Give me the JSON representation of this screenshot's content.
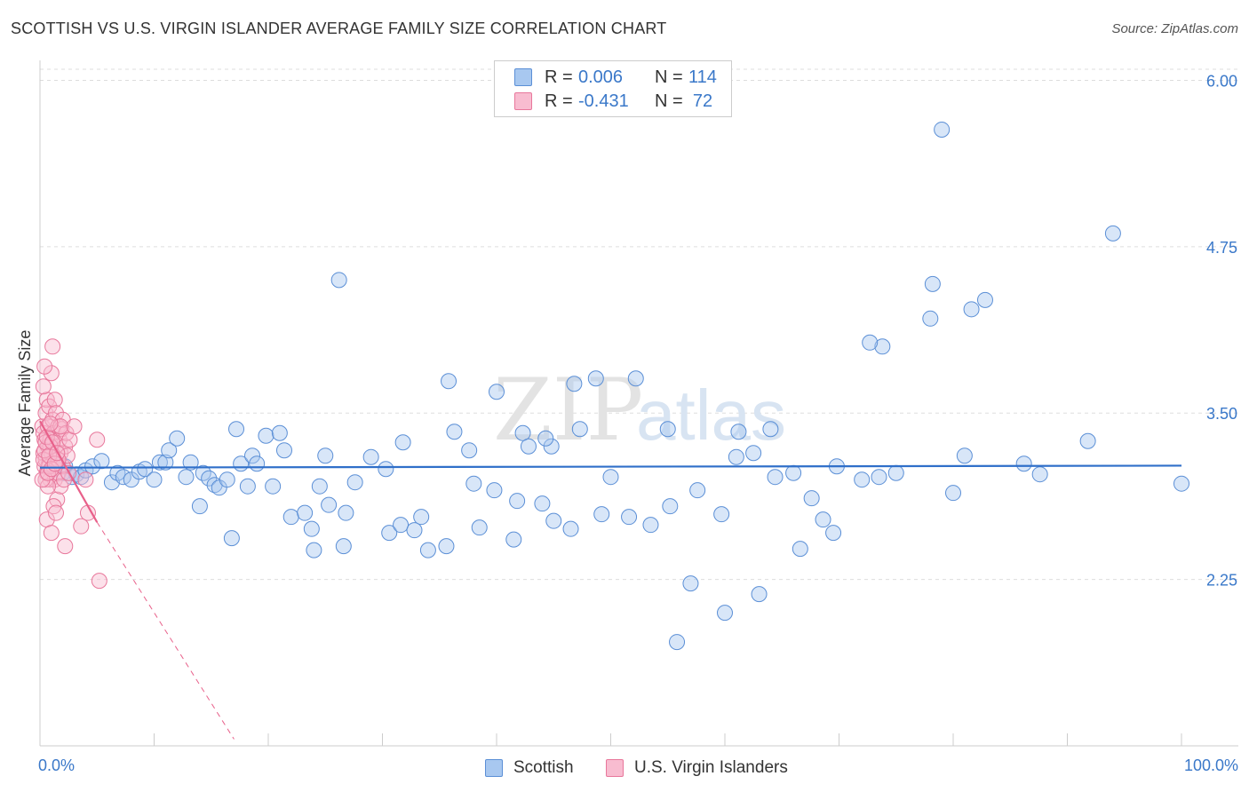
{
  "chart_data": {
    "type": "scatter",
    "title": "SCOTTISH VS U.S. VIRGIN ISLANDER AVERAGE FAMILY SIZE CORRELATION CHART",
    "source": "Source: ZipAtlas.com",
    "xlabel": "",
    "ylabel": "Average Family Size",
    "xlim": [
      0,
      100
    ],
    "ylim": [
      1.0,
      6.15
    ],
    "x_tick_labels": {
      "min": "0.0%",
      "max": "100.0%"
    },
    "y_ticks": [
      {
        "value": 2.25,
        "label": "2.25"
      },
      {
        "value": 3.5,
        "label": "3.50"
      },
      {
        "value": 4.75,
        "label": "4.75"
      },
      {
        "value": 6.0,
        "label": "6.00"
      }
    ],
    "grid": true,
    "watermark": {
      "part1": "ZIP",
      "part2": "atlas"
    },
    "legend_top": [
      {
        "r_label": "R =",
        "r_value": "0.006",
        "n_label": "N =",
        "n_value": "114"
      },
      {
        "r_label": "R =",
        "r_value": "-0.431",
        "n_label": "N =",
        "n_value": "72"
      }
    ],
    "series": [
      {
        "name": "Scottish",
        "fill": "#a8c8f0",
        "stroke": "#5b8fd6",
        "line_color": "#2f6fc9",
        "trend": {
          "x0": 0,
          "y0": 3.09,
          "x1": 100,
          "y1": 3.105
        },
        "points": [
          [
            1.6,
            3.12
          ],
          [
            2.0,
            3.05
          ],
          [
            2.2,
            3.1
          ],
          [
            2.8,
            3.02
          ],
          [
            3.2,
            3.04
          ],
          [
            3.6,
            3.02
          ],
          [
            4.0,
            3.07
          ],
          [
            4.6,
            3.1
          ],
          [
            5.4,
            3.14
          ],
          [
            6.3,
            2.98
          ],
          [
            6.8,
            3.05
          ],
          [
            7.3,
            3.02
          ],
          [
            8.0,
            3.0
          ],
          [
            8.7,
            3.06
          ],
          [
            9.2,
            3.08
          ],
          [
            10.0,
            3.0
          ],
          [
            10.5,
            3.13
          ],
          [
            11.0,
            3.13
          ],
          [
            11.3,
            3.22
          ],
          [
            12.0,
            3.31
          ],
          [
            12.8,
            3.02
          ],
          [
            13.2,
            3.13
          ],
          [
            14.0,
            2.8
          ],
          [
            14.3,
            3.05
          ],
          [
            14.8,
            3.01
          ],
          [
            15.3,
            2.96
          ],
          [
            15.7,
            2.94
          ],
          [
            16.4,
            3.0
          ],
          [
            16.8,
            2.56
          ],
          [
            17.2,
            3.38
          ],
          [
            17.6,
            3.12
          ],
          [
            18.2,
            2.95
          ],
          [
            18.6,
            3.18
          ],
          [
            19.0,
            3.12
          ],
          [
            19.8,
            3.33
          ],
          [
            20.4,
            2.95
          ],
          [
            21.0,
            3.35
          ],
          [
            21.4,
            3.22
          ],
          [
            22.0,
            2.72
          ],
          [
            23.2,
            2.75
          ],
          [
            23.8,
            2.63
          ],
          [
            24.0,
            2.47
          ],
          [
            24.5,
            2.95
          ],
          [
            25.0,
            3.18
          ],
          [
            25.3,
            2.81
          ],
          [
            26.2,
            4.5
          ],
          [
            26.6,
            2.5
          ],
          [
            26.8,
            2.75
          ],
          [
            27.6,
            2.98
          ],
          [
            29.0,
            3.17
          ],
          [
            30.6,
            2.6
          ],
          [
            31.6,
            2.66
          ],
          [
            31.8,
            3.28
          ],
          [
            30.3,
            3.08
          ],
          [
            32.8,
            2.62
          ],
          [
            33.4,
            2.72
          ],
          [
            34.0,
            2.47
          ],
          [
            35.6,
            2.5
          ],
          [
            35.8,
            3.74
          ],
          [
            38.0,
            2.97
          ],
          [
            36.3,
            3.36
          ],
          [
            37.6,
            3.22
          ],
          [
            38.5,
            2.64
          ],
          [
            39.8,
            2.92
          ],
          [
            41.5,
            2.55
          ],
          [
            41.8,
            2.84
          ],
          [
            42.3,
            3.35
          ],
          [
            42.8,
            3.25
          ],
          [
            44.0,
            2.82
          ],
          [
            40.0,
            3.66
          ],
          [
            44.8,
            3.25
          ],
          [
            45.0,
            2.69
          ],
          [
            46.5,
            2.63
          ],
          [
            47.3,
            3.38
          ],
          [
            46.8,
            3.72
          ],
          [
            48.7,
            3.76
          ],
          [
            49.2,
            2.74
          ],
          [
            44.3,
            3.31
          ],
          [
            50.0,
            3.02
          ],
          [
            51.6,
            2.72
          ],
          [
            52.2,
            3.76
          ],
          [
            53.5,
            2.66
          ],
          [
            55.2,
            2.8
          ],
          [
            57.0,
            2.22
          ],
          [
            57.6,
            2.92
          ],
          [
            55.8,
            1.78
          ],
          [
            55.0,
            3.38
          ],
          [
            60.0,
            2.0
          ],
          [
            61.2,
            3.36
          ],
          [
            63.0,
            2.14
          ],
          [
            64.4,
            3.02
          ],
          [
            66.0,
            3.05
          ],
          [
            67.6,
            2.86
          ],
          [
            69.5,
            2.6
          ],
          [
            68.6,
            2.7
          ],
          [
            73.8,
            4.0
          ],
          [
            72.7,
            4.03
          ],
          [
            78.0,
            4.21
          ],
          [
            81.6,
            4.28
          ],
          [
            82.8,
            4.35
          ],
          [
            78.2,
            4.47
          ],
          [
            61.0,
            3.17
          ],
          [
            62.5,
            3.2
          ],
          [
            64.0,
            3.38
          ],
          [
            66.6,
            2.48
          ],
          [
            59.7,
            2.74
          ],
          [
            79.0,
            5.63
          ],
          [
            94.0,
            4.85
          ],
          [
            91.8,
            3.29
          ],
          [
            87.6,
            3.04
          ],
          [
            86.2,
            3.12
          ],
          [
            100.0,
            2.97
          ],
          [
            81.0,
            3.18
          ],
          [
            69.8,
            3.1
          ],
          [
            72.0,
            3.0
          ],
          [
            73.5,
            3.02
          ],
          [
            75.0,
            3.05
          ],
          [
            80.0,
            2.9
          ]
        ]
      },
      {
        "name": "U.S. Virgin Islanders",
        "fill": "#f8bcd0",
        "stroke": "#e8779b",
        "line_color": "#e8608a",
        "trend": {
          "x0": 0,
          "y0": 3.44,
          "x1": 5.0,
          "y1": 2.68
        },
        "trend_dashed": {
          "x0": 5.0,
          "y0": 2.68,
          "x1": 17.0,
          "y1": 1.05
        },
        "points": [
          [
            0.2,
            3.4
          ],
          [
            0.3,
            3.35
          ],
          [
            0.3,
            3.2
          ],
          [
            0.4,
            3.1
          ],
          [
            0.4,
            3.3
          ],
          [
            0.5,
            3.5
          ],
          [
            0.5,
            3.15
          ],
          [
            0.6,
            3.6
          ],
          [
            0.6,
            3.05
          ],
          [
            0.7,
            3.25
          ],
          [
            0.7,
            3.4
          ],
          [
            0.8,
            3.12
          ],
          [
            0.8,
            3.55
          ],
          [
            0.9,
            3.3
          ],
          [
            0.9,
            3.0
          ],
          [
            1.0,
            3.8
          ],
          [
            1.0,
            3.2
          ],
          [
            1.1,
            4.0
          ],
          [
            1.1,
            3.45
          ],
          [
            1.2,
            3.1
          ],
          [
            1.2,
            3.35
          ],
          [
            1.3,
            3.6
          ],
          [
            1.3,
            3.0
          ],
          [
            1.4,
            3.25
          ],
          [
            1.4,
            3.5
          ],
          [
            1.5,
            3.15
          ],
          [
            1.5,
            2.85
          ],
          [
            1.6,
            3.4
          ],
          [
            1.6,
            3.05
          ],
          [
            1.7,
            3.3
          ],
          [
            1.8,
            3.2
          ],
          [
            1.8,
            2.95
          ],
          [
            1.9,
            3.38
          ],
          [
            2.0,
            3.1
          ],
          [
            2.0,
            3.45
          ],
          [
            2.1,
            3.0
          ],
          [
            2.2,
            3.25
          ],
          [
            2.3,
            3.35
          ],
          [
            2.4,
            3.18
          ],
          [
            2.5,
            3.05
          ],
          [
            0.3,
            3.7
          ],
          [
            0.4,
            3.85
          ],
          [
            0.5,
            3.0
          ],
          [
            0.6,
            2.7
          ],
          [
            0.7,
            2.95
          ],
          [
            0.8,
            3.1
          ],
          [
            0.9,
            3.25
          ],
          [
            1.0,
            2.6
          ],
          [
            1.2,
            2.8
          ],
          [
            1.4,
            2.75
          ],
          [
            1.6,
            3.15
          ],
          [
            1.8,
            3.4
          ],
          [
            2.2,
            2.5
          ],
          [
            2.6,
            3.3
          ],
          [
            3.0,
            3.4
          ],
          [
            3.6,
            2.65
          ],
          [
            4.0,
            3.0
          ],
          [
            5.0,
            3.3
          ],
          [
            5.2,
            2.24
          ],
          [
            4.2,
            2.75
          ],
          [
            0.2,
            3.0
          ],
          [
            0.3,
            3.15
          ],
          [
            0.4,
            3.22
          ],
          [
            0.5,
            3.28
          ],
          [
            0.6,
            3.32
          ],
          [
            0.7,
            3.05
          ],
          [
            0.8,
            3.18
          ],
          [
            0.9,
            3.42
          ],
          [
            1.0,
            3.08
          ],
          [
            1.1,
            3.28
          ],
          [
            1.3,
            3.12
          ],
          [
            1.5,
            3.2
          ]
        ]
      }
    ]
  },
  "legend_bottom": [
    {
      "label": "Scottish"
    },
    {
      "label": "U.S. Virgin Islanders"
    }
  ]
}
